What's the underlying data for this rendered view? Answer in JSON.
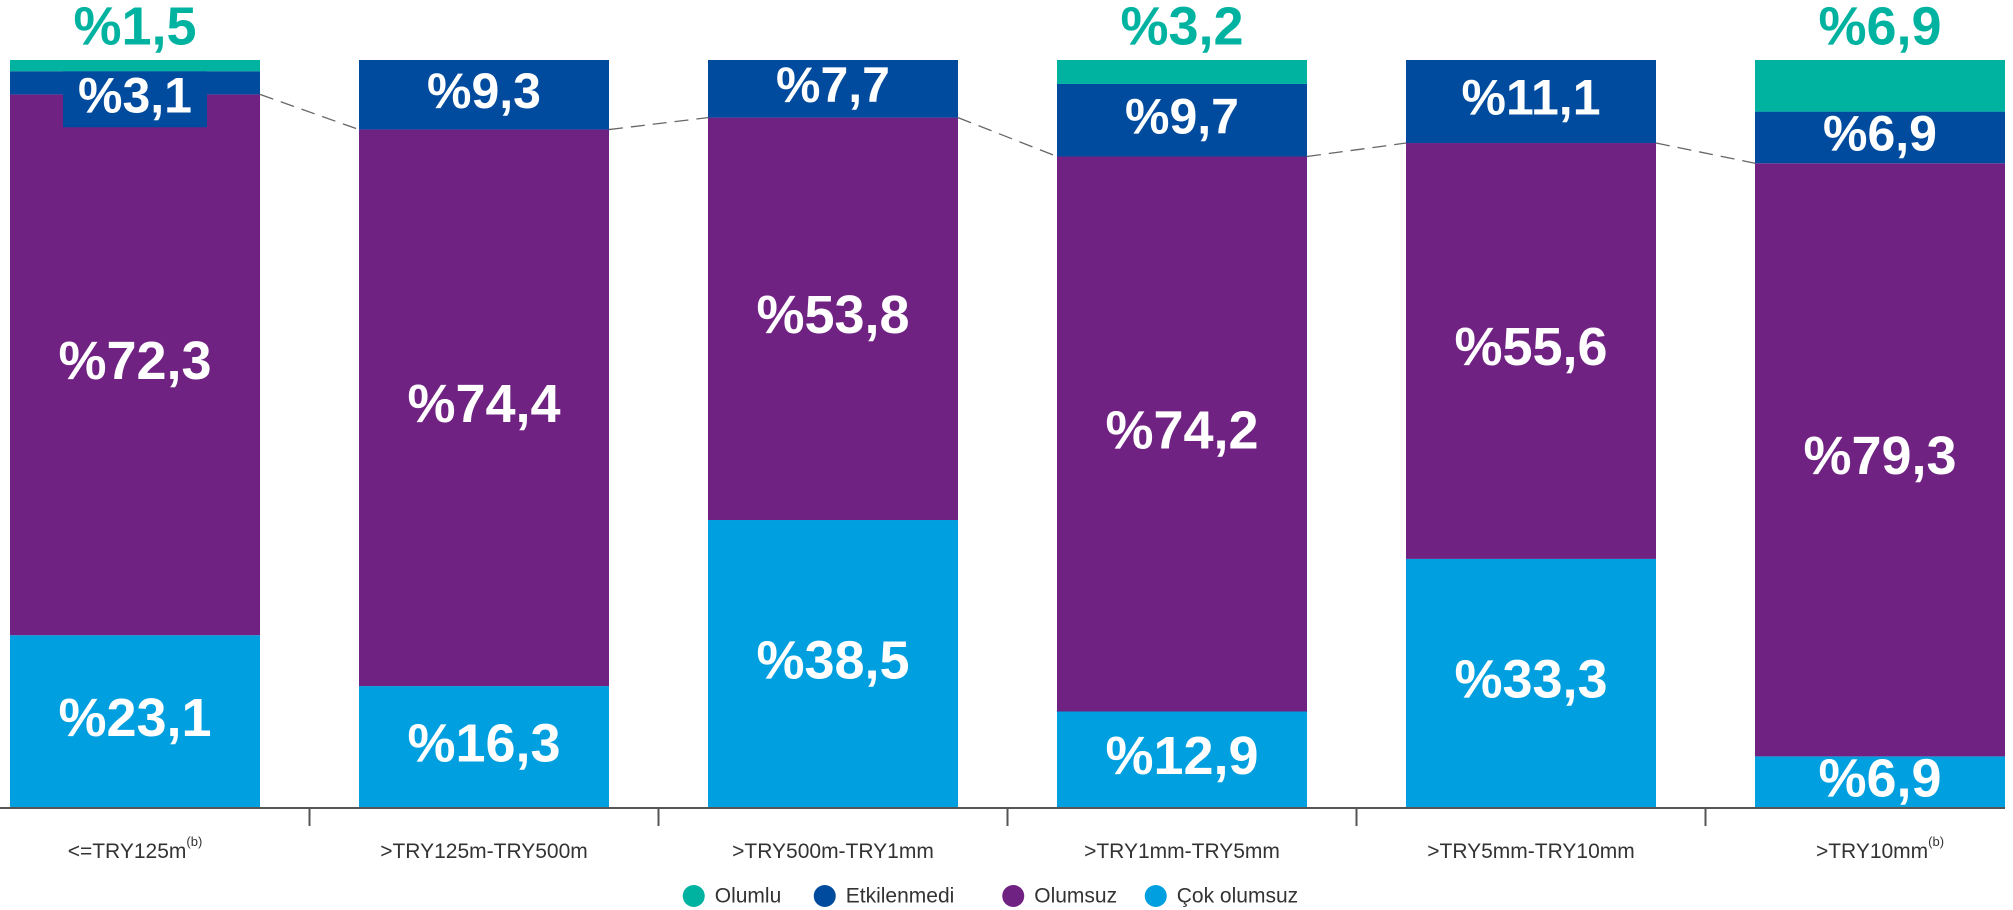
{
  "chart_data": {
    "type": "stacked_bar",
    "categories": [
      "<=TRY125m",
      ">TRY125m-TRY500m",
      ">TRY500m-TRY1mm",
      ">TRY1mm-TRY5mm",
      ">TRY5mm-TRY10mm",
      ">TRY10mm"
    ],
    "category_notes": [
      "(b)",
      null,
      null,
      null,
      null,
      "(b)"
    ],
    "ylim": [
      0,
      100
    ],
    "series": [
      {
        "name": "Olumlu",
        "color": "#00b2a0",
        "values": [
          1.5,
          0,
          0,
          3.2,
          0,
          6.9
        ],
        "value_labels": [
          "%1,5",
          null,
          null,
          "%3,2",
          null,
          "%6,9"
        ]
      },
      {
        "name": "Etkilenmedi",
        "color": "#004b9e",
        "values": [
          3.1,
          9.3,
          7.7,
          9.7,
          11.1,
          6.9
        ],
        "value_labels": [
          "%3,1",
          "%9,3",
          "%7,7",
          "%9,7",
          "%11,1",
          "%6,9"
        ]
      },
      {
        "name": "Olumsuz",
        "color": "#702283",
        "values": [
          72.3,
          74.4,
          53.8,
          74.2,
          55.6,
          79.3
        ],
        "value_labels": [
          "%72,3",
          "%74,4",
          "%53,8",
          "%74,2",
          "%55,6",
          "%79,3"
        ]
      },
      {
        "name": "Çok olumsuz",
        "color": "#009fdf",
        "values": [
          23.1,
          16.3,
          38.5,
          12.9,
          33.3,
          6.9
        ],
        "value_labels": [
          "%23,1",
          "%16,3",
          "%38,5",
          "%12,9",
          "%33,3",
          "%6,9"
        ]
      }
    ]
  }
}
